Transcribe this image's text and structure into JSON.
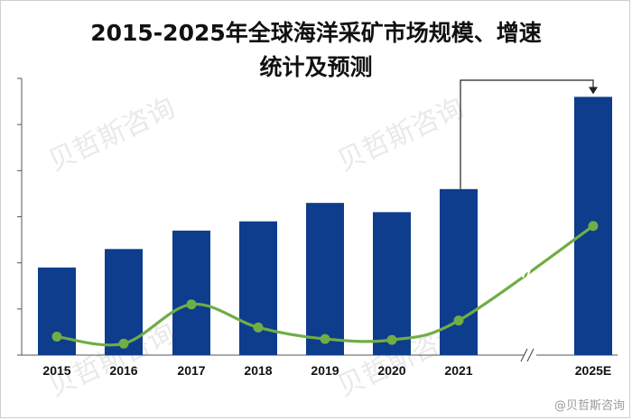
{
  "chart_data": {
    "type": "bar",
    "title": "2015-2025年全球海洋采矿市场规模、增速统计及预测",
    "categories": [
      "2015",
      "2016",
      "2017",
      "2018",
      "2019",
      "2020",
      "2021",
      "2025E"
    ],
    "series": [
      {
        "type": "bar",
        "color": "#0d3d8c",
        "values": [
          1.9,
          2.3,
          2.7,
          2.9,
          3.3,
          3.1,
          3.6,
          5.6
        ]
      },
      {
        "type": "line",
        "color": "#70ad47",
        "values": [
          0.4,
          0.25,
          1.1,
          0.6,
          0.35,
          0.33,
          0.75,
          2.8
        ]
      }
    ],
    "ylim": [
      0,
      6
    ],
    "axis_break_between": [
      "2021",
      "2025E"
    ],
    "annotation": "arrow from 2021 bar to 2025E bar",
    "grid": false,
    "legend": "none"
  },
  "watermark": {
    "text": "贝哲斯咨询",
    "credit": "@贝哲斯咨询"
  }
}
